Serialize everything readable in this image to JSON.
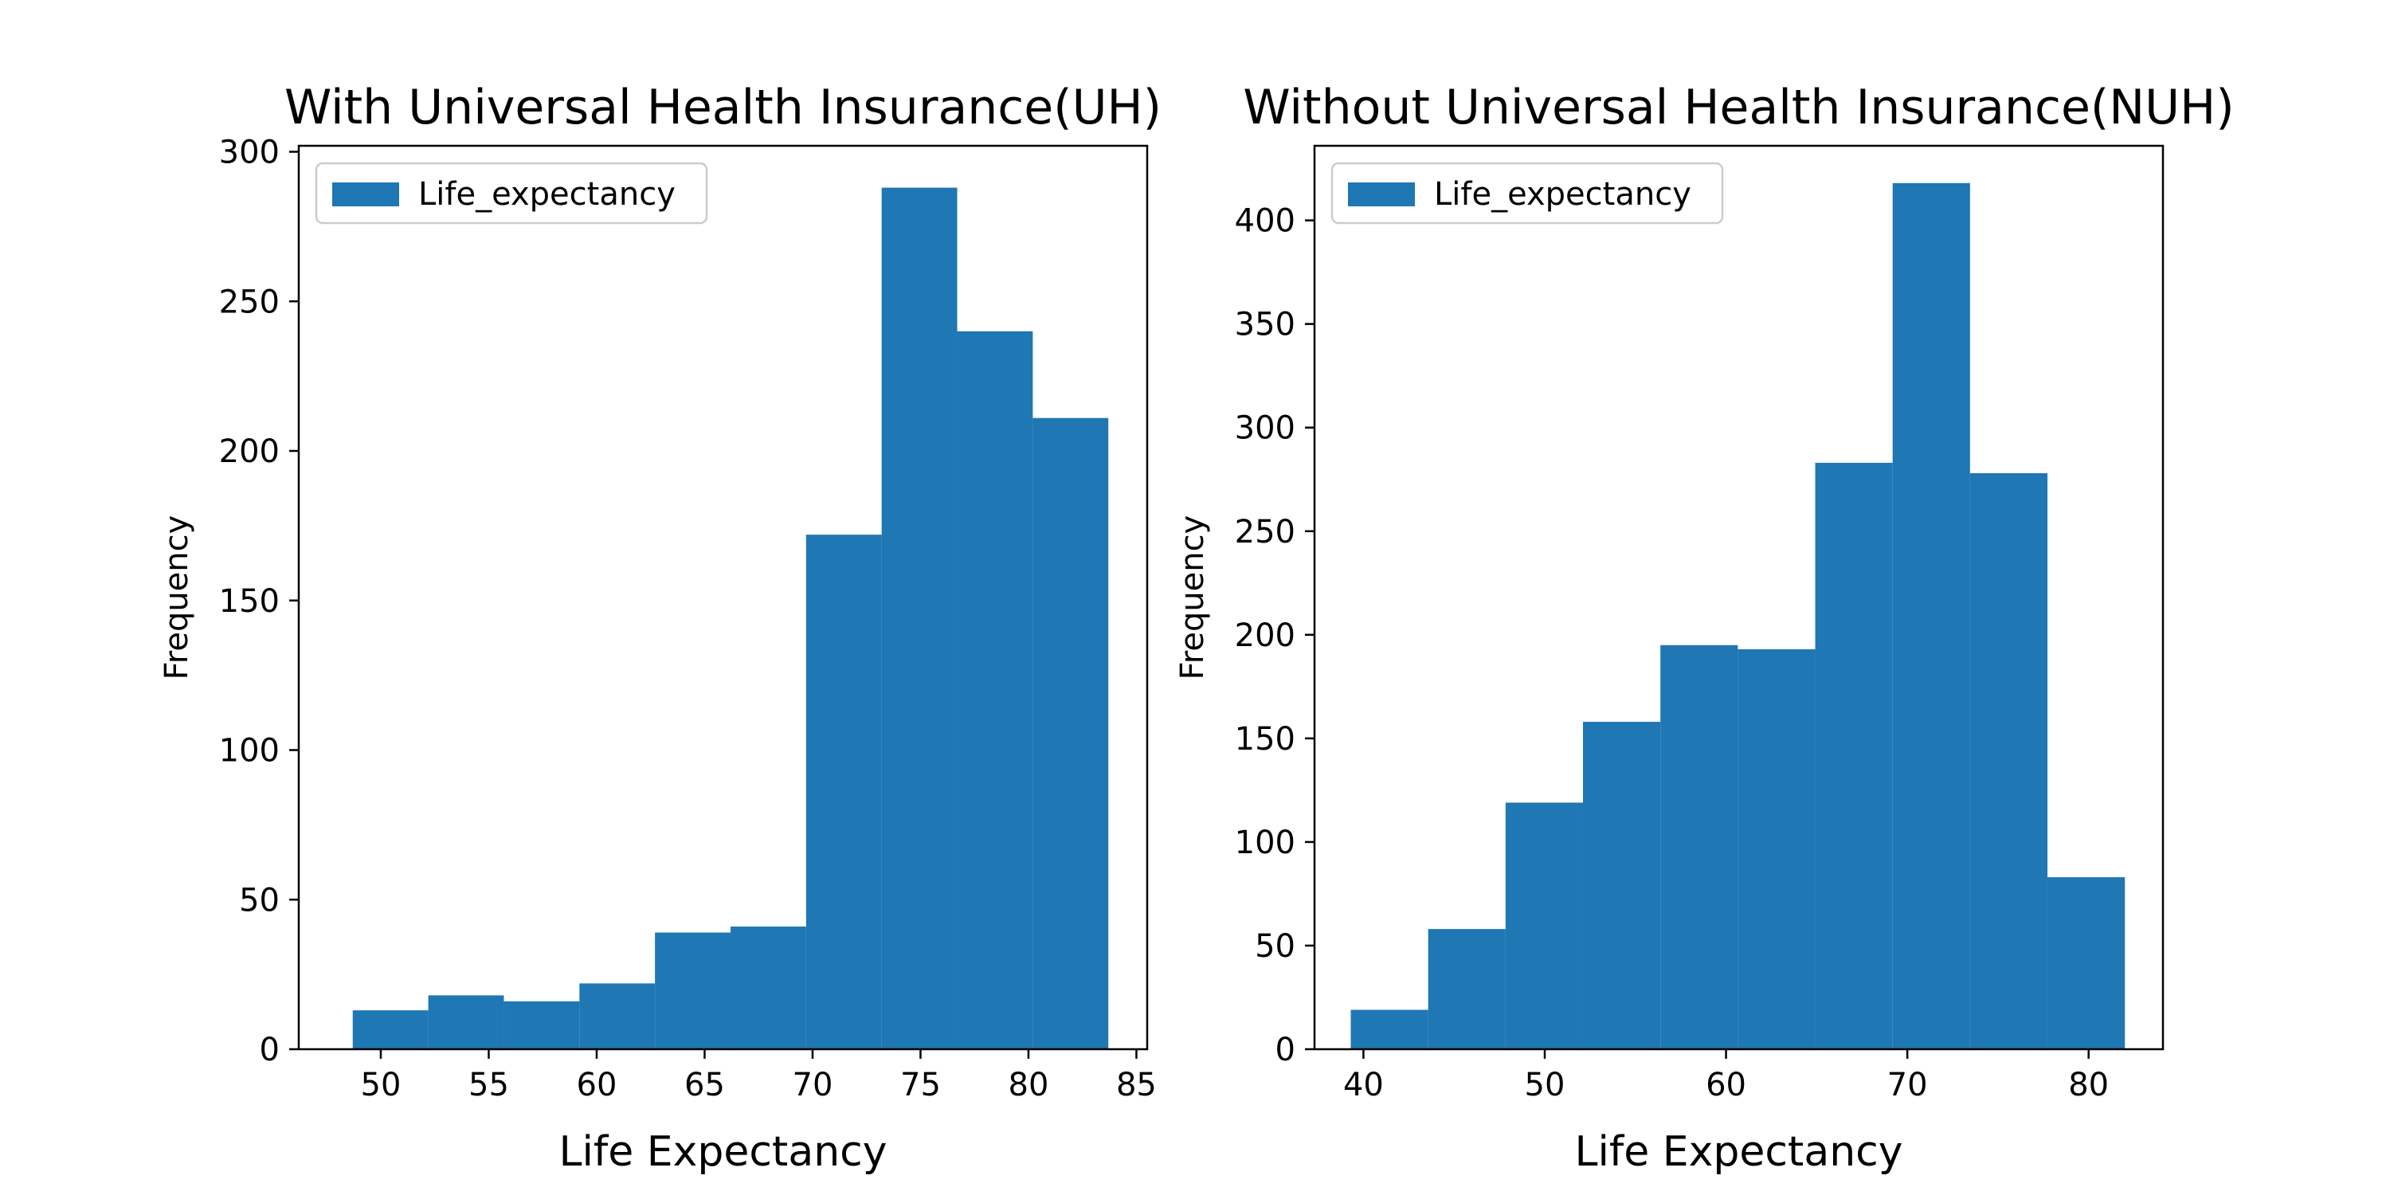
{
  "chart_data": [
    {
      "type": "bar",
      "histogram": true,
      "title": "With Universal Health Insurance(UH)",
      "xlabel": "Life Expectancy",
      "ylabel": "Frequency",
      "legend": {
        "entries": [
          "Life_expectancy"
        ],
        "location": "top-left"
      },
      "xlim": [
        46.2,
        85.5
      ],
      "ylim": [
        0,
        302
      ],
      "xticks": [
        50,
        55,
        60,
        65,
        70,
        75,
        80,
        85
      ],
      "yticks": [
        0,
        50,
        100,
        150,
        200,
        250,
        300
      ],
      "bin_edges": [
        48.7,
        52.2,
        55.7,
        59.2,
        62.7,
        66.2,
        69.7,
        73.2,
        76.7,
        80.2,
        83.7
      ],
      "series": [
        {
          "name": "Life_expectancy",
          "values": [
            13,
            18,
            16,
            22,
            39,
            41,
            172,
            288,
            240,
            211
          ]
        }
      ],
      "grid": false
    },
    {
      "type": "bar",
      "histogram": true,
      "title": "Without Universal Health Insurance(NUH)",
      "xlabel": "Life Expectancy",
      "ylabel": "Frequency",
      "legend": {
        "entries": [
          "Life_expectancy"
        ],
        "location": "top-left"
      },
      "xlim": [
        37.3,
        84.1
      ],
      "ylim": [
        0,
        436
      ],
      "xticks": [
        40,
        50,
        60,
        70,
        80
      ],
      "yticks": [
        0,
        50,
        100,
        150,
        200,
        250,
        300,
        350,
        400
      ],
      "bin_edges": [
        39.3,
        43.57,
        47.84,
        52.11,
        56.38,
        60.65,
        64.92,
        69.19,
        73.46,
        77.73,
        82.0
      ],
      "series": [
        {
          "name": "Life_expectancy",
          "values": [
            19,
            58,
            119,
            158,
            195,
            193,
            283,
            418,
            278,
            83
          ]
        }
      ],
      "grid": false
    }
  ],
  "colors": {
    "bar": "#1f77b4",
    "axis": "#000000",
    "legend_border": "#cccccc"
  }
}
